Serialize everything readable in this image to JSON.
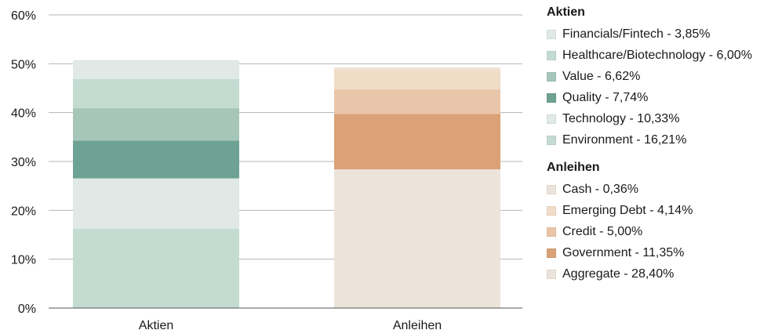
{
  "chart_data": {
    "type": "bar",
    "stacked": true,
    "categories": [
      "Aktien",
      "Anleihen"
    ],
    "yticks": [
      "0%",
      "10%",
      "20%",
      "30%",
      "40%",
      "50%",
      "60%"
    ],
    "ylim": [
      0,
      60
    ],
    "grid": true,
    "legend_position": "right",
    "series": [
      {
        "name": "Environment - 16,21%",
        "group": "Aktien",
        "values": [
          16.21,
          0
        ],
        "color": "#c4dbd2"
      },
      {
        "name": "Technology - 10,33%",
        "group": "Aktien",
        "values": [
          10.33,
          0
        ],
        "color": "#e0e9e5"
      },
      {
        "name": "Quality - 7,74%",
        "group": "Aktien",
        "values": [
          7.74,
          0
        ],
        "color": "#6ea292"
      },
      {
        "name": "Value - 6,62%",
        "group": "Aktien",
        "values": [
          6.62,
          0
        ],
        "color": "#a6c6ba"
      },
      {
        "name": "Healthcare/Biotechnology - 6,00%",
        "group": "Aktien",
        "values": [
          6.0,
          0
        ],
        "color": "#c4dbd2"
      },
      {
        "name": "Financials/Fintech - 3,85%",
        "group": "Aktien",
        "values": [
          3.85,
          0
        ],
        "color": "#e0e9e5"
      },
      {
        "name": "Aggregate - 28,40%",
        "group": "Anleihen",
        "values": [
          0,
          28.4
        ],
        "color": "#ece3da"
      },
      {
        "name": "Government - 11,35%",
        "group": "Anleihen",
        "values": [
          0,
          11.35
        ],
        "color": "#daa276"
      },
      {
        "name": "Credit - 5,00%",
        "group": "Anleihen",
        "values": [
          0,
          5.0
        ],
        "color": "#e9c5a9"
      },
      {
        "name": "Emerging Debt - 4,14%",
        "group": "Anleihen",
        "values": [
          0,
          4.14
        ],
        "color": "#f1dcc8"
      },
      {
        "name": "Cash - 0,36%",
        "group": "Anleihen",
        "values": [
          0,
          0.36
        ],
        "color": "#ece3da"
      }
    ]
  },
  "legend": {
    "groups": [
      {
        "title": "Aktien",
        "items": [
          {
            "label": "Financials/Fintech - 3,85%",
            "color": "#e0e9e5"
          },
          {
            "label": "Healthcare/Biotechnology - 6,00%",
            "color": "#c4dbd2"
          },
          {
            "label": "Value - 6,62%",
            "color": "#a6c6ba"
          },
          {
            "label": "Quality - 7,74%",
            "color": "#6ea292"
          },
          {
            "label": "Technology - 10,33%",
            "color": "#e0e9e5"
          },
          {
            "label": "Environment - 16,21%",
            "color": "#c4dbd2"
          }
        ]
      },
      {
        "title": "Anleihen",
        "items": [
          {
            "label": "Cash - 0,36%",
            "color": "#ece3da"
          },
          {
            "label": "Emerging Debt - 4,14%",
            "color": "#f1dcc8"
          },
          {
            "label": "Credit - 5,00%",
            "color": "#e9c5a9"
          },
          {
            "label": "Government - 11,35%",
            "color": "#daa276"
          },
          {
            "label": "Aggregate - 28,40%",
            "color": "#ece3da"
          }
        ]
      }
    ]
  }
}
